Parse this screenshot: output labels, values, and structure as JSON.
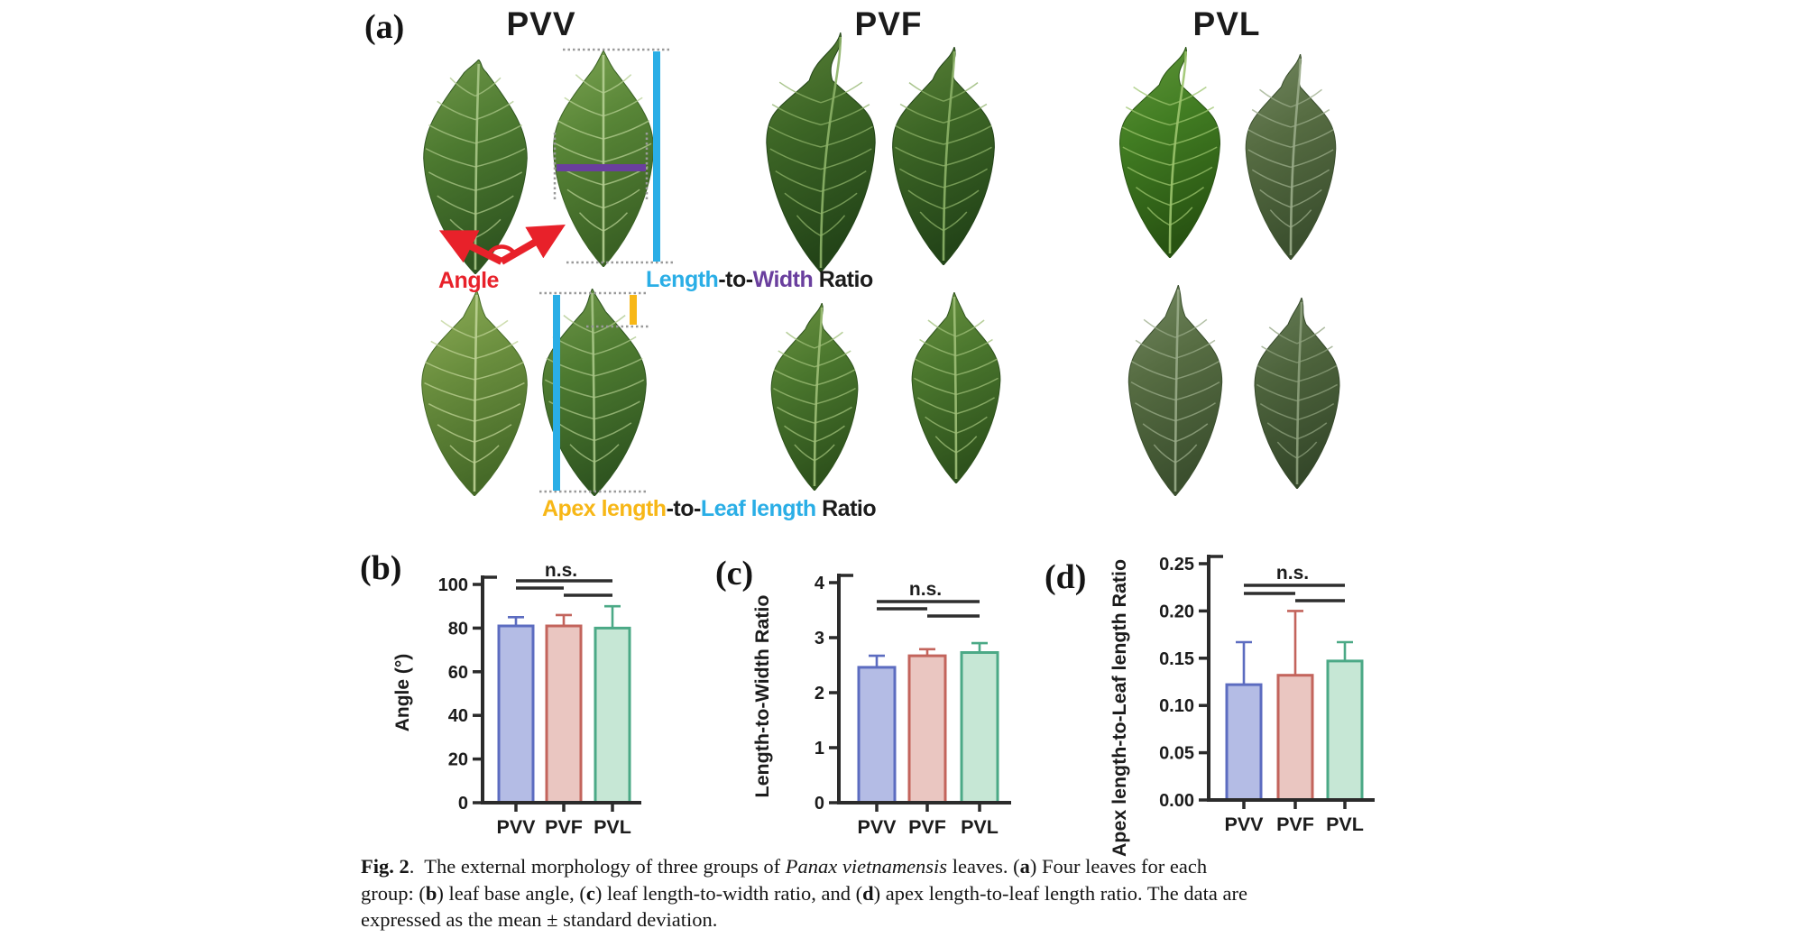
{
  "page": {
    "background": "#ffffff"
  },
  "panel_a": {
    "label": "(a)",
    "group_titles": [
      "PVV",
      "PVF",
      "PVL"
    ],
    "measure_labels": {
      "angle": "Angle",
      "length_to_width": [
        {
          "text": "Length",
          "color": "cyan"
        },
        {
          "text": "-to-",
          "color": "black"
        },
        {
          "text": "Width",
          "color": "purple"
        },
        {
          "text": " Ratio",
          "color": "black"
        }
      ],
      "apex_to_leaf": [
        {
          "text": "Apex length",
          "color": "yellow"
        },
        {
          "text": "-to-",
          "color": "black"
        },
        {
          "text": "Leaf length",
          "color": "cyan"
        },
        {
          "text": " Ratio",
          "color": "black"
        }
      ]
    },
    "colors": {
      "red": "#e8212a",
      "cyan": "#2aaee6",
      "purple": "#6a3f9e",
      "yellow": "#f7b717",
      "dotted": "#9a9a9a",
      "black": "#1c1c1c"
    },
    "leaf_palettes": {
      "pvv": {
        "light": "#71984a",
        "main": "#4d7a30",
        "dark": "#2f5520",
        "vein": "#a9c687"
      },
      "pvvLight": {
        "light": "#7ca452",
        "main": "#578436",
        "dark": "#3a6124",
        "vein": "#b5cf92"
      },
      "pvvYellow": {
        "light": "#8fae58",
        "main": "#6a8e3e",
        "dark": "#466a28",
        "vein": "#bdd194"
      },
      "pvfDark": {
        "light": "#5a8238",
        "main": "#3c6525",
        "dark": "#234418",
        "vein": "#8db268"
      },
      "pvfMid": {
        "light": "#6b9341",
        "main": "#4a762d",
        "dark": "#2e521c",
        "vein": "#9fbf78"
      },
      "pvlBright": {
        "light": "#61973a",
        "main": "#417c22",
        "dark": "#285312",
        "vein": "#9cc46e"
      },
      "pvlGray": {
        "light": "#738860",
        "main": "#566c42",
        "dark": "#3b4f2e",
        "vein": "#99ab88"
      },
      "pvlGray2": {
        "light": "#687e57",
        "main": "#4d633c",
        "dark": "#35482a",
        "vein": "#8da07c"
      }
    }
  },
  "chart_style": {
    "fills": [
      "#b4bce5",
      "#eac6c1",
      "#c6e7d5"
    ],
    "strokes": [
      "#5c6cc0",
      "#c3645c",
      "#4ba986"
    ],
    "axis": "#2b2b2b",
    "sig": "#2e2e2e",
    "text": "#1c1c1c"
  },
  "chart_data": [
    {
      "type": "bar",
      "id": "b",
      "panel_label": "(b)",
      "ylabel": "Angle (°)",
      "categories": [
        "PVV",
        "PVF",
        "PVL"
      ],
      "values": [
        81,
        81,
        80
      ],
      "errors_plus": [
        4,
        5,
        10
      ],
      "ylim": [
        0,
        100
      ],
      "tick_labels": [
        "0",
        "20",
        "40",
        "60",
        "80",
        "100"
      ],
      "ns_label": "n.s.",
      "significance": "n.s. for all pairwise comparisons (PVV-PVF, PVV-PVL, PVF-PVL)",
      "legend_position": "none",
      "grid": false
    },
    {
      "type": "bar",
      "id": "c",
      "panel_label": "(c)",
      "ylabel": "Length-to-Width Ratio",
      "categories": [
        "PVV",
        "PVF",
        "PVL"
      ],
      "values": [
        2.46,
        2.67,
        2.73
      ],
      "errors_plus": [
        0.21,
        0.12,
        0.17
      ],
      "ylim": [
        0,
        4
      ],
      "tick_labels": [
        "0",
        "1",
        "2",
        "3",
        "4"
      ],
      "ns_label": "n.s.",
      "significance": "n.s. for all pairwise comparisons (PVV-PVF, PVV-PVL, PVF-PVL)",
      "legend_position": "none",
      "grid": false
    },
    {
      "type": "bar",
      "id": "d",
      "panel_label": "(d)",
      "ylabel": "Apex length-to-Leaf length Ratio",
      "categories": [
        "PVV",
        "PVF",
        "PVL"
      ],
      "values": [
        0.122,
        0.132,
        0.147
      ],
      "errors_plus": [
        0.045,
        0.068,
        0.02
      ],
      "ylim": [
        0,
        0.25
      ],
      "tick_labels": [
        "0.00",
        "0.05",
        "0.10",
        "0.15",
        "0.20",
        "0.25"
      ],
      "ns_label": "n.s.",
      "significance": "n.s. for all pairwise comparisons (PVV-PVF, PVV-PVL, PVF-PVL)",
      "legend_position": "none",
      "grid": false
    }
  ],
  "caption": {
    "lines": [
      [
        {
          "t": "Fig. 2",
          "b": true
        },
        {
          "t": ".  The external morphology of three groups of "
        },
        {
          "t": "Panax vietnamensis",
          "i": true
        },
        {
          "t": " leaves. ("
        },
        {
          "t": "a",
          "b": true
        },
        {
          "t": ") Four leaves for each"
        }
      ],
      [
        {
          "t": "group: ("
        },
        {
          "t": "b",
          "b": true
        },
        {
          "t": ") leaf base angle, ("
        },
        {
          "t": "c",
          "b": true
        },
        {
          "t": ") leaf length-to-width ratio, and ("
        },
        {
          "t": "d",
          "b": true
        },
        {
          "t": ") apex length-to-leaf length ratio. The data are"
        }
      ],
      [
        {
          "t": "expressed as the mean ± standard deviation."
        }
      ]
    ]
  }
}
